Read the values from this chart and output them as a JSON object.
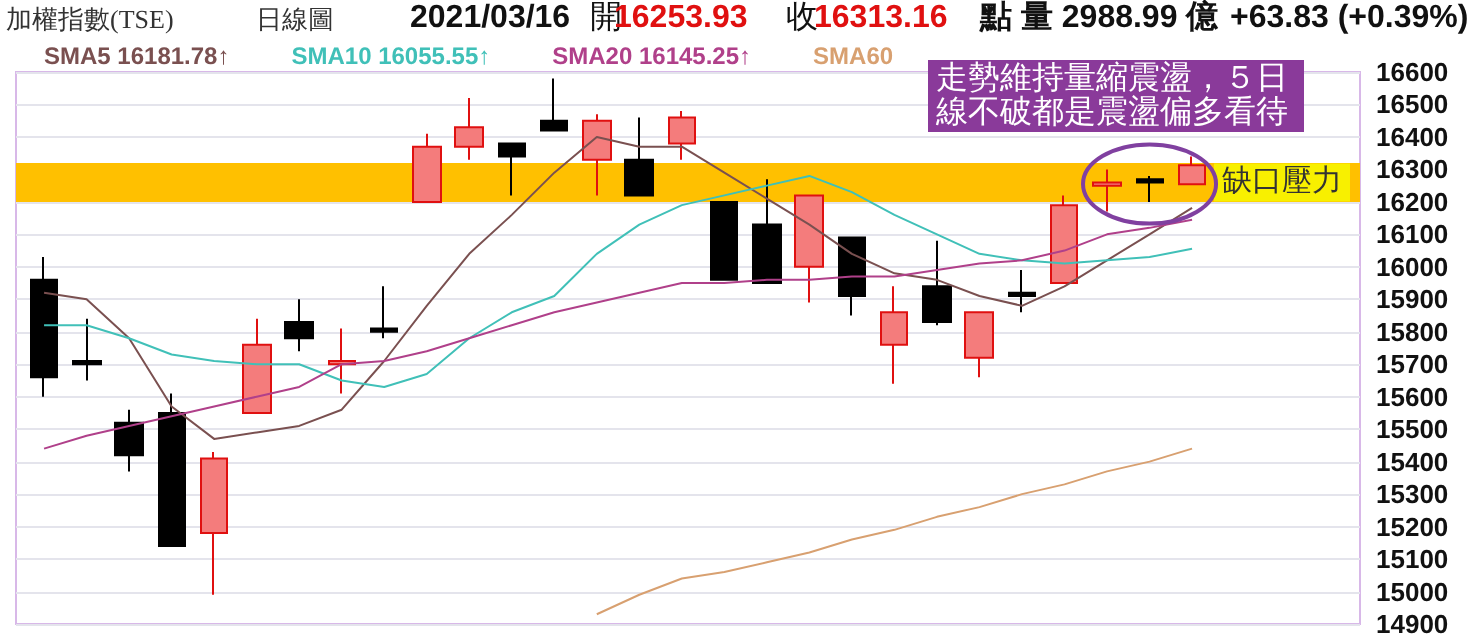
{
  "chart_data": {
    "type": "candlestick",
    "title": "加權指數(TSE)",
    "annotations": [
      "日線圖",
      "2021/03/16",
      "開",
      "16253.93",
      "收",
      "16313.16",
      "點 量 2988.99 億",
      "+63.83 (+0.39%)",
      "走勢維持量縮震盪，５日線不破都是震盪偏多看待"
    ],
    "categories": [
      null,
      null,
      null,
      null,
      null,
      null,
      null,
      null,
      null,
      null,
      null,
      null,
      null,
      null,
      null,
      null,
      null,
      null,
      null,
      null,
      null,
      null,
      null,
      null,
      null,
      null,
      null,
      null
    ],
    "ohlc": [
      [
        15960,
        16030,
        15600,
        15660
      ],
      [
        15710,
        15840,
        15650,
        15700
      ],
      [
        15520,
        15560,
        15370,
        15420
      ],
      [
        15550,
        15610,
        15140,
        15140
      ],
      [
        15180,
        15430,
        14990,
        15410
      ],
      [
        15550,
        15840,
        15550,
        15760
      ],
      [
        15830,
        15900,
        15740,
        15780
      ],
      [
        15700,
        15810,
        15610,
        15710
      ],
      [
        15810,
        15940,
        15780,
        15800
      ],
      [
        16200,
        16410,
        16200,
        16370
      ],
      [
        16370,
        16520,
        16330,
        16430
      ],
      [
        16380,
        16380,
        16220,
        16340
      ],
      [
        16450,
        16580,
        16420,
        16420
      ],
      [
        16330,
        16470,
        16220,
        16450
      ],
      [
        16330,
        16460,
        16220,
        16220
      ],
      [
        16380,
        16480,
        16330,
        16460
      ],
      [
        16200,
        16200,
        15960,
        15960
      ],
      [
        16130,
        16270,
        15950,
        15950
      ],
      [
        16000,
        16220,
        15890,
        16220
      ],
      [
        16090,
        16090,
        15850,
        15910
      ],
      [
        15760,
        15940,
        15640,
        15860
      ],
      [
        15940,
        16080,
        15820,
        15830
      ],
      [
        15720,
        15860,
        15660,
        15860
      ],
      [
        15920,
        15990,
        15860,
        15910
      ],
      [
        15950,
        16220,
        15950,
        16190
      ],
      [
        16250,
        16300,
        16170,
        16260
      ],
      [
        16270,
        16280,
        16200,
        16260
      ],
      [
        16253.93,
        16340,
        16253.93,
        16313.16
      ]
    ],
    "series": [
      {
        "name": "SMA5 16181.78↑",
        "type": "line",
        "color": "#7a5050",
        "values": [
          15920,
          15900,
          15780,
          15570,
          15470,
          15490,
          15510,
          15560,
          15710,
          15880,
          16040,
          16160,
          16290,
          16400,
          16370,
          16370,
          16290,
          16210,
          16130,
          16040,
          15980,
          15960,
          15910,
          15880,
          15940,
          16020,
          16100,
          16181.78
        ]
      },
      {
        "name": "SMA10 16055.55↑",
        "type": "line",
        "color": "#40c0b8",
        "values": [
          15820,
          15820,
          15780,
          15730,
          15710,
          15700,
          15700,
          15650,
          15630,
          15670,
          15780,
          15860,
          15910,
          16040,
          16130,
          16190,
          16220,
          16250,
          16280,
          16230,
          16160,
          16100,
          16040,
          16020,
          16010,
          16020,
          16030,
          16055.55
        ]
      },
      {
        "name": "SMA20 16145.25↑",
        "type": "line",
        "color": "#b0408a",
        "values": [
          15440,
          15480,
          15510,
          15540,
          15570,
          15600,
          15630,
          15700,
          15710,
          15740,
          15780,
          15820,
          15860,
          15890,
          15920,
          15950,
          15950,
          15960,
          15960,
          15970,
          15970,
          15990,
          16010,
          16020,
          16050,
          16100,
          16120,
          16145.25
        ]
      },
      {
        "name": "SMA60",
        "type": "line",
        "color": "#d8a070",
        "values": [
          null,
          null,
          null,
          null,
          null,
          null,
          null,
          null,
          null,
          null,
          null,
          null,
          null,
          14930,
          14990,
          15040,
          15060,
          15090,
          15120,
          15160,
          15190,
          15230,
          15260,
          15300,
          15330,
          15370,
          15400,
          15440
        ]
      }
    ],
    "ylim": [
      14900,
      16600
    ],
    "yticks": [
      14900,
      15000,
      15100,
      15200,
      15300,
      15400,
      15500,
      15600,
      15700,
      15800,
      15900,
      16000,
      16100,
      16200,
      16300,
      16400,
      16500,
      16600
    ],
    "bands": [
      {
        "axis": "y",
        "from": 16200,
        "to": 16320,
        "label": "缺口壓力",
        "color": "#ffc000"
      }
    ],
    "grid": "y",
    "legend": "top",
    "tick_labels": "y"
  }
}
